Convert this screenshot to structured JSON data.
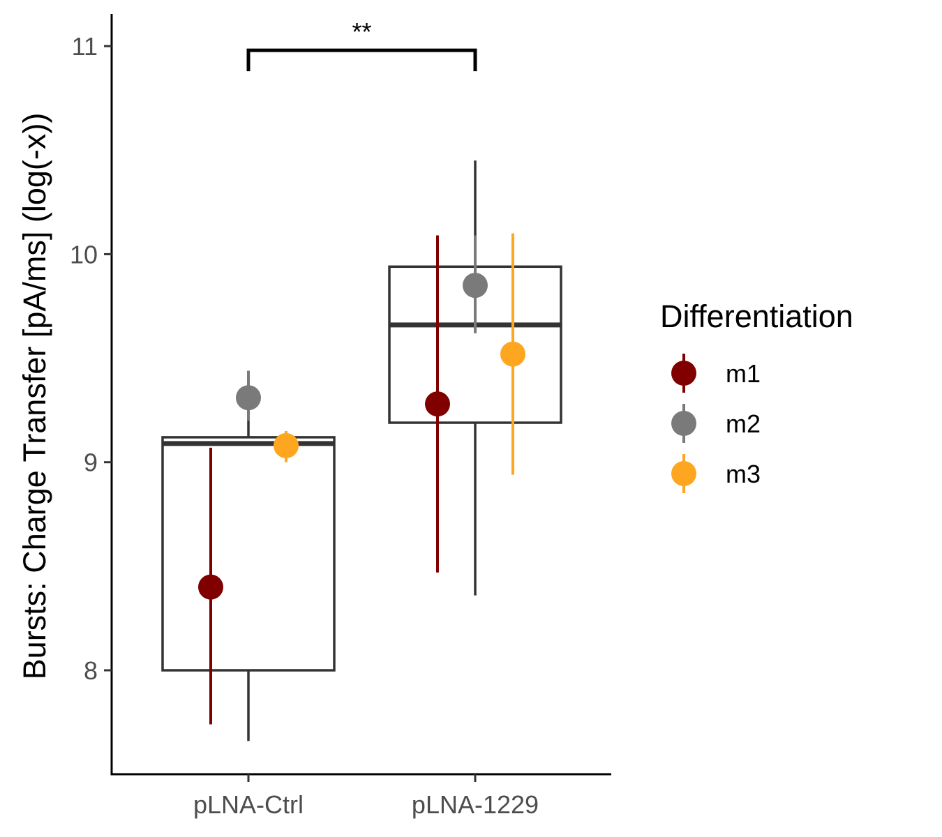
{
  "chart_data": {
    "type": "box",
    "ylabel": "Bursts: Charge Transfer [pA/ms] (log(-x))",
    "xlabel": "",
    "categories": [
      "pLNA-Ctrl",
      "pLNA-1229"
    ],
    "ylim": [
      7.5,
      11.15
    ],
    "yticks": [
      8,
      9,
      10,
      11
    ],
    "grid": false,
    "boxes": [
      {
        "category": "pLNA-Ctrl",
        "q1": 8.0,
        "median": 9.09,
        "q3": 9.12,
        "whisker_low": 7.66,
        "whisker_high": 9.2
      },
      {
        "category": "pLNA-1229",
        "q1": 9.19,
        "median": 9.66,
        "q3": 9.94,
        "whisker_low": 8.36,
        "whisker_high": 10.45
      }
    ],
    "series": [
      {
        "name": "m1",
        "color": "#800000",
        "points": [
          {
            "category": "pLNA-Ctrl",
            "mean": 8.4,
            "low": 7.74,
            "high": 9.07
          },
          {
            "category": "pLNA-1229",
            "mean": 9.28,
            "low": 8.47,
            "high": 10.09
          }
        ]
      },
      {
        "name": "m2",
        "color": "#7a7a7a",
        "points": [
          {
            "category": "pLNA-Ctrl",
            "mean": 9.31,
            "low": 9.2,
            "high": 9.44
          },
          {
            "category": "pLNA-1229",
            "mean": 9.85,
            "low": 9.62,
            "high": 10.09
          }
        ]
      },
      {
        "name": "m3",
        "color": "#ffa620",
        "points": [
          {
            "category": "pLNA-Ctrl",
            "mean": 9.08,
            "low": 9.0,
            "high": 9.15
          },
          {
            "category": "pLNA-1229",
            "mean": 9.52,
            "low": 8.94,
            "high": 10.1
          }
        ]
      }
    ],
    "significance": {
      "from": "pLNA-Ctrl",
      "to": "pLNA-1229",
      "label": "**",
      "y": 10.98
    },
    "legend": {
      "title": "Differentiation",
      "placement": "right"
    }
  }
}
